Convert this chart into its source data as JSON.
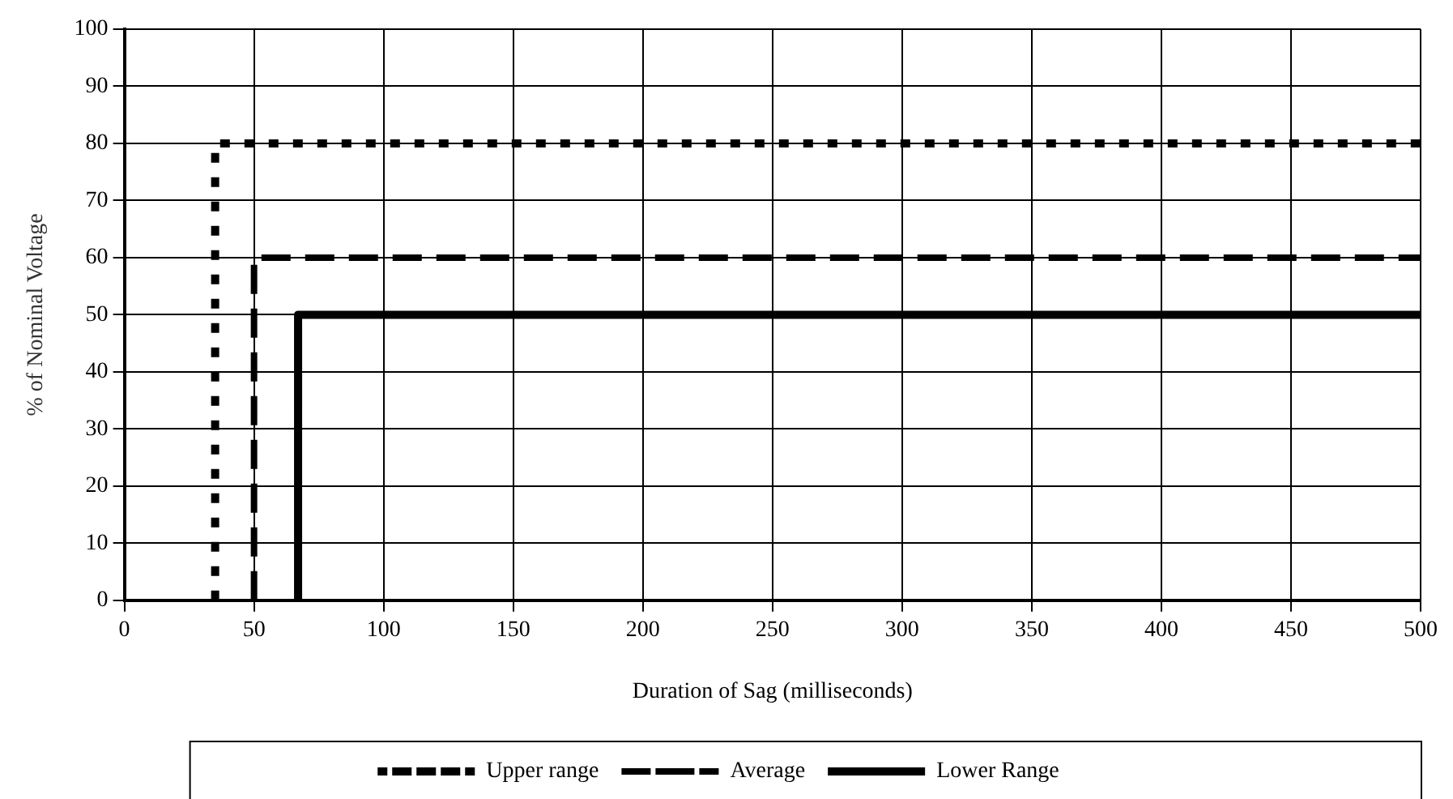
{
  "chart_data": {
    "type": "line",
    "xlabel": "Duration of Sag (milliseconds)",
    "ylabel": "% of Nominal Voltage",
    "xlim": [
      0,
      500
    ],
    "xticks": [
      0,
      50,
      100,
      150,
      200,
      250,
      300,
      350,
      400,
      450,
      500
    ],
    "ylim": [
      0,
      100
    ],
    "yticks": [
      0,
      10,
      20,
      30,
      40,
      50,
      60,
      70,
      80,
      90,
      100
    ],
    "grid": true,
    "legend": "bottom",
    "marker": "none",
    "series": [
      {
        "name": "Upper range",
        "color": "#000000",
        "line_style": "dotted",
        "x": [
          35,
          35,
          500
        ],
        "values": [
          0,
          80,
          80
        ]
      },
      {
        "name": "Average",
        "color": "#000000",
        "line_style": "dashed",
        "x": [
          50,
          50,
          500
        ],
        "values": [
          0,
          60,
          60
        ]
      },
      {
        "name": "Lower Range",
        "color": "#000000",
        "line_style": "solid",
        "x": [
          67,
          67,
          500
        ],
        "values": [
          0,
          50,
          50
        ]
      }
    ]
  }
}
